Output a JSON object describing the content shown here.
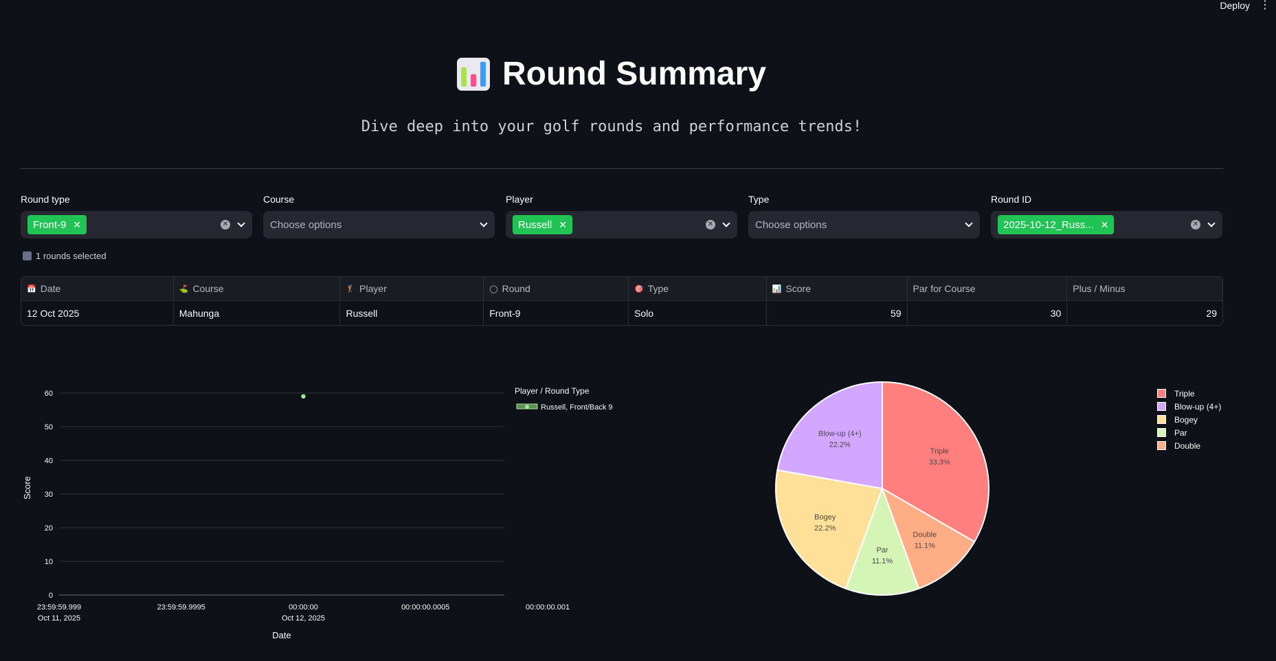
{
  "topbar": {
    "deploy_label": "Deploy",
    "menu_glyph": "⋮"
  },
  "header": {
    "title": "Round Summary",
    "title_icon": "bar-chart-emoji",
    "subtitle": "Dive deep into your golf rounds and performance trends!"
  },
  "filters": [
    {
      "label": "Round type",
      "selected": [
        "Front-9"
      ],
      "placeholder": ""
    },
    {
      "label": "Course",
      "selected": [],
      "placeholder": "Choose options"
    },
    {
      "label": "Player",
      "selected": [
        "Russell"
      ],
      "placeholder": ""
    },
    {
      "label": "Type",
      "selected": [],
      "placeholder": "Choose options"
    },
    {
      "label": "Round ID",
      "selected": [
        "2025-10-12_Russ..."
      ],
      "placeholder": ""
    }
  ],
  "rounds_selected": "1 rounds selected",
  "table": {
    "headers": [
      {
        "label": "Date",
        "icon": "📅"
      },
      {
        "label": "Course",
        "icon": "⛳"
      },
      {
        "label": "Player",
        "icon": "🏌"
      },
      {
        "label": "Round",
        "icon": "◯"
      },
      {
        "label": "Type",
        "icon": "🎯"
      },
      {
        "label": "Score",
        "icon": "📊"
      },
      {
        "label": "Par for Course",
        "icon": ""
      },
      {
        "label": "Plus / Minus",
        "icon": ""
      }
    ],
    "rows": [
      [
        "12 Oct 2025",
        "Mahunga",
        "Russell",
        "Front-9",
        "Solo",
        "59",
        "30",
        "29"
      ]
    ]
  },
  "colors": {
    "accent_chip": "#21c354",
    "background": "#0e1117",
    "scatter_point": "#a5e89a"
  },
  "chart_data": [
    {
      "type": "scatter",
      "xlabel": "Date",
      "ylabel": "Score",
      "ylim": [
        0,
        60
      ],
      "yticks": [
        "0",
        "10",
        "20",
        "30",
        "40",
        "50",
        "60"
      ],
      "xticks": [
        {
          "line1": "23:59:59.999",
          "line2": "Oct 11, 2025"
        },
        {
          "line1": "23:59:59.9995",
          "line2": ""
        },
        {
          "line1": "00:00:00",
          "line2": "Oct 12, 2025"
        },
        {
          "line1": "00:00:00.0005",
          "line2": ""
        },
        {
          "line1": "00:00:00.001",
          "line2": ""
        }
      ],
      "legend_title": "Player / Round Type",
      "legend_position": "top-right",
      "series": [
        {
          "name": "Russell, Front/Back 9",
          "x": [
            "2025-10-12 00:00:00"
          ],
          "y": [
            59
          ]
        }
      ],
      "grid": true
    },
    {
      "type": "pie",
      "legend_position": "right",
      "slices": [
        {
          "label": "Triple",
          "value": 33.3,
          "pct_label": "33.3%",
          "color": "#ff7f7f"
        },
        {
          "label": "Double",
          "value": 11.1,
          "pct_label": "11.1%",
          "color": "#ffad85"
        },
        {
          "label": "Par",
          "value": 11.1,
          "pct_label": "11.1%",
          "color": "#d4f5b5"
        },
        {
          "label": "Bogey",
          "value": 22.2,
          "pct_label": "22.2%",
          "color": "#ffe099"
        },
        {
          "label": "Blow-up (4+)",
          "value": 22.2,
          "pct_label": "22.2%",
          "color": "#d3a6ff"
        }
      ],
      "legend": [
        "Triple",
        "Blow-up (4+)",
        "Bogey",
        "Par",
        "Double"
      ]
    }
  ]
}
